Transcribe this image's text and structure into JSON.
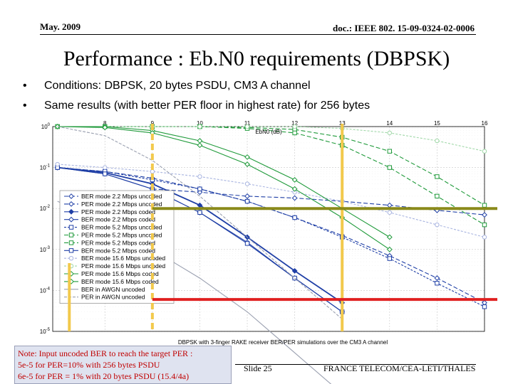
{
  "header": {
    "date": "May. 2009",
    "doc_id": "doc.: IEEE 802. 15-09-0324-02-0006"
  },
  "slide": {
    "title": "Performance : Eb.N0 requirements (DBPSK)",
    "bullets": [
      "Conditions: DBPSK, 20 bytes PSDU, CM3 A channel",
      "Same results (with better PER floor in highest rate) for 256 bytes"
    ],
    "bullet_glyph": "•"
  },
  "note": {
    "lines": [
      "Note: Input uncoded BER to reach the target PER :",
      "5e-5 for PER=10% with 256 bytes PSDU",
      "6e-5 for PER = 1% with 20 bytes PSDU (15.4/4a)"
    ]
  },
  "footer": {
    "slide": "Slide 25",
    "org": "FRANCE TELECOM/CEA-LETI/THALES"
  },
  "chart_data": {
    "type": "line",
    "title": "DBPSK with 3-finger RAKE receiver BER/PER simulations over the CM3 A channel",
    "xlabel": "EbN0 (dB)",
    "ylabel": "",
    "x_ticks": [
      8,
      9,
      10,
      11,
      12,
      13,
      14,
      15,
      16
    ],
    "xlim": [
      6.9,
      16.0
    ],
    "y_ticks": [
      "10^0",
      "10^-1",
      "10^-2",
      "10^-3",
      "10^-4",
      "10^-5"
    ],
    "y_scale": "log",
    "ylim_exp": [
      -5,
      0
    ],
    "grid": true,
    "legend_position": "bottom-left",
    "series": [
      {
        "name": "BER mode 2.2 Mbps uncoded",
        "color": "#1f3fa6",
        "dash": "6 3",
        "marker": "diamond",
        "x": [
          7,
          8,
          9,
          10,
          11,
          12,
          13,
          14,
          15,
          16
        ],
        "y": [
          0.1,
          0.08,
          0.055,
          0.03,
          0.015,
          0.006,
          0.0022,
          0.0007,
          0.0002,
          5e-05
        ]
      },
      {
        "name": "PER mode 2.2 Mbps uncoded",
        "color": "#1f3fa6",
        "dash": "6 3",
        "marker": "diamond",
        "x": [
          9,
          10,
          11,
          12,
          13,
          14,
          15,
          16
        ],
        "y": [
          0.03,
          0.025,
          0.02,
          0.018,
          0.015,
          0.012,
          0.009,
          0.007
        ]
      },
      {
        "name": "PER mode 2.2 Mbps coded",
        "color": "#1f3fa6",
        "dash": "",
        "marker": "diamond-filled",
        "x": [
          7,
          8,
          9,
          10,
          11,
          12,
          13
        ],
        "y": [
          0.1,
          0.075,
          0.04,
          0.012,
          0.002,
          0.0003,
          5e-05
        ]
      },
      {
        "name": "BER mode 2.2 Mbps coded",
        "color": "#1f3fa6",
        "dash": "",
        "marker": "diamond",
        "x": [
          7,
          8,
          9,
          10,
          11,
          12,
          13
        ],
        "y": [
          0.1,
          0.07,
          0.03,
          0.008,
          0.0015,
          0.0002,
          3e-05
        ]
      },
      {
        "name": "BER mode 5.2 Mbps uncoded",
        "color": "#1f3fa6",
        "dash": "3 2",
        "marker": "square",
        "x": [
          7,
          8,
          9,
          10,
          11,
          12,
          13,
          14,
          15,
          16
        ],
        "y": [
          0.1,
          0.08,
          0.05,
          0.03,
          0.015,
          0.006,
          0.002,
          0.0006,
          0.00015,
          4e-05
        ]
      },
      {
        "name": "PER mode 5.2 Mbps uncoded",
        "color": "#1f9a3a",
        "dash": "6 3",
        "marker": "square",
        "x": [
          7,
          8,
          9,
          10,
          11,
          12,
          13,
          14,
          15,
          16
        ],
        "y": [
          1,
          1,
          1,
          1,
          0.95,
          0.85,
          0.55,
          0.25,
          0.06,
          0.012
        ]
      },
      {
        "name": "PER mode 5.2 Mbps coded",
        "color": "#1f9a3a",
        "dash": "6 3",
        "marker": "square",
        "x": [
          7,
          8,
          9,
          10,
          11,
          12,
          13,
          14,
          15,
          16
        ],
        "y": [
          1,
          1,
          1,
          1,
          0.9,
          0.7,
          0.35,
          0.1,
          0.02,
          0.004
        ]
      },
      {
        "name": "BER mode 5.2 Mbps coded",
        "color": "#1f3fa6",
        "dash": "",
        "marker": "square",
        "x": [
          7,
          8,
          9,
          10,
          11,
          12,
          13
        ],
        "y": [
          0.1,
          0.07,
          0.03,
          0.008,
          0.0014,
          0.0002,
          3e-05
        ]
      },
      {
        "name": "BER mode 15.6 Mbps uncoded",
        "color": "#a8b4e0",
        "dash": "3 2",
        "marker": "circle",
        "x": [
          7,
          8,
          9,
          10,
          11,
          12,
          13,
          14,
          15,
          16
        ],
        "y": [
          0.12,
          0.1,
          0.08,
          0.06,
          0.04,
          0.025,
          0.015,
          0.008,
          0.004,
          0.002
        ]
      },
      {
        "name": "PER mode 15.6 Mbps uncoded",
        "color": "#a0d8a8",
        "dash": "3 2",
        "marker": "circle",
        "x": [
          7,
          8,
          9,
          10,
          11,
          12,
          13,
          14,
          15,
          16
        ],
        "y": [
          1,
          1,
          1,
          1,
          1,
          1,
          0.9,
          0.7,
          0.45,
          0.25
        ]
      },
      {
        "name": "PER mode 15.6 Mbps coded",
        "color": "#1f9a3a",
        "dash": "",
        "marker": "diamond",
        "x": [
          7,
          8,
          9,
          10,
          11,
          12,
          13,
          14
        ],
        "y": [
          1,
          1,
          0.8,
          0.45,
          0.18,
          0.05,
          0.01,
          0.002
        ]
      },
      {
        "name": "BER mode 15.6 Mbps coded",
        "color": "#1f9a3a",
        "dash": "",
        "marker": "diamond",
        "x": [
          7,
          8,
          9,
          10,
          11,
          12,
          13,
          14
        ],
        "y": [
          1,
          0.95,
          0.7,
          0.35,
          0.12,
          0.03,
          0.006,
          0.001
        ]
      },
      {
        "name": "BER in AWGN uncoded",
        "color": "#9aa0b0",
        "dash": "",
        "marker": "none",
        "x": [
          7,
          8,
          9,
          10,
          11,
          12,
          13
        ],
        "y": [
          0.015,
          0.005,
          0.001,
          0.0002,
          3e-05,
          3e-06,
          3e-07
        ]
      },
      {
        "name": "PER in AWGN uncoded",
        "color": "#9aa0b0",
        "dash": "4 2",
        "marker": "none",
        "x": [
          7,
          8,
          9,
          10,
          11,
          12,
          13
        ],
        "y": [
          1,
          0.6,
          0.15,
          0.02,
          0.002,
          0.0002,
          2e-05
        ]
      }
    ],
    "annotations": {
      "vertical_lines": [
        {
          "x": 9.0,
          "color": "#f2c94c",
          "dash": true
        },
        {
          "x": 13.0,
          "color": "#f2c94c",
          "dash": false
        }
      ],
      "vertical_line_left_x": 7.25,
      "horizontal_lines": [
        {
          "y": 0.01,
          "color": "#8a8a1a"
        },
        {
          "y": 6e-05,
          "color": "#e02020"
        }
      ]
    }
  }
}
